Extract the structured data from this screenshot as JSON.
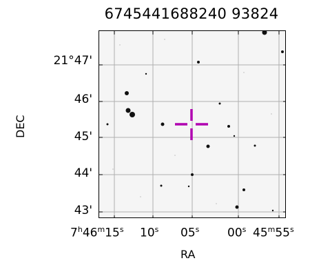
{
  "title": "67454416882409382⁄",
  "top_label": "6745441688240 93824",
  "axes": {
    "ylabel": "DEC",
    "xlabel": "RA",
    "yticks": [
      "21°47'",
      "46'",
      "45'",
      "44'",
      "43'"
    ],
    "xticks": [
      {
        "h": "7",
        "m": "46",
        "s": "15",
        "text_main": "7",
        "sup1": "h",
        "text_mid": "46",
        "sup2": "m",
        "text_end": "15",
        "sup3": "s"
      },
      {
        "text_main": "10",
        "sup1": "s"
      },
      {
        "text_main": "05",
        "sup1": "s"
      },
      {
        "text_main": "00",
        "sup1": "s"
      },
      {
        "text_main": "45",
        "sup1": "m",
        "text_end": "55",
        "sup3": "s"
      }
    ]
  },
  "grid": "on",
  "marker": {
    "shape": "cross",
    "color": "#b000b0"
  },
  "stars_color": "#111111"
}
